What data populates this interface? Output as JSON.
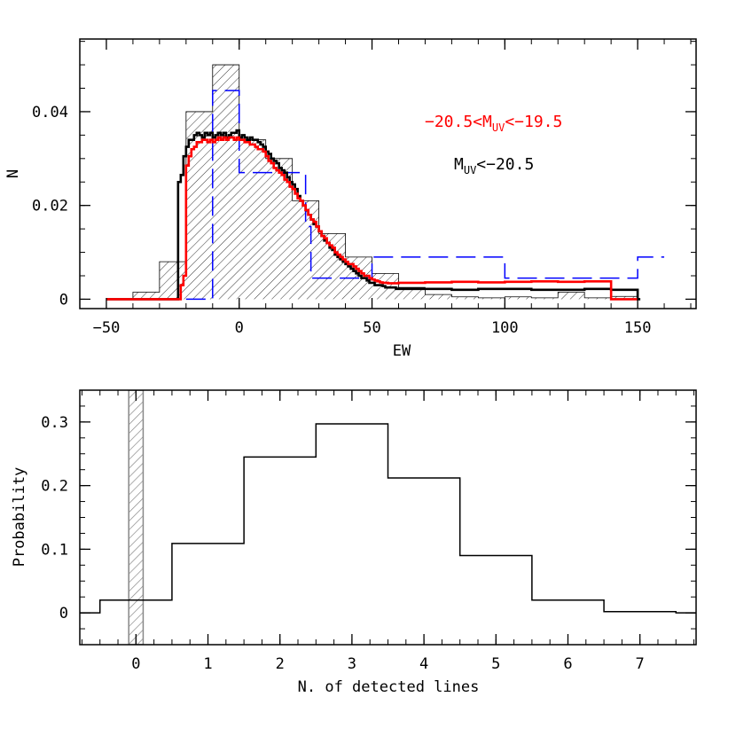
{
  "chart_data": [
    {
      "type": "histogram",
      "xlabel": "EW",
      "ylabel": "N",
      "xlim": [
        -60,
        172
      ],
      "ylim": [
        -0.002,
        0.0555
      ],
      "xticks": [
        -50,
        0,
        50,
        100,
        150
      ],
      "xtick_labels": [
        "−50",
        "0",
        "50",
        "100",
        "150"
      ],
      "yticks": [
        0,
        0.02,
        0.04
      ],
      "ytick_labels": [
        "0",
        "0.02",
        "0.04"
      ],
      "legend": [
        {
          "prefix": "−20.5<M",
          "subscript": "UV",
          "suffix": "<−19.5",
          "color": "#ff0000"
        },
        {
          "prefix": "M",
          "subscript": "UV",
          "suffix": "<−20.5",
          "color": "#000000"
        }
      ],
      "series": [
        {
          "style": "hatched",
          "color": "#000000",
          "edges": [
            -50,
            -40,
            -30,
            -20,
            -10,
            0,
            10,
            20,
            30,
            40,
            50,
            60,
            70,
            80,
            90,
            100,
            110,
            120,
            130,
            140,
            150
          ],
          "values": [
            0,
            0.0015,
            0.008,
            0.04,
            0.05,
            0.034,
            0.03,
            0.021,
            0.014,
            0.009,
            0.0055,
            0.0025,
            0.001,
            0.0005,
            0.0003,
            0.0005,
            0.0003,
            0.0015,
            0.0003,
            0.0006
          ]
        },
        {
          "style": "dashed",
          "color": "#0000ff",
          "edges": [
            -20,
            -10,
            0,
            25,
            27,
            50,
            100,
            150,
            160
          ],
          "values": [
            0,
            0.0445,
            0.027,
            0.0155,
            0.0045,
            0.009,
            0.0045,
            0.009
          ]
        },
        {
          "style": "solid-thick",
          "color": "#000000",
          "x": [
            -50,
            -23,
            -22,
            -21,
            -20,
            -19,
            -18,
            -17,
            -16,
            -15,
            -14,
            -13,
            -12,
            -11,
            -10,
            -9,
            -8,
            -7,
            -6,
            -5,
            -4,
            -3,
            -2,
            -1,
            0,
            1,
            2,
            3,
            4,
            5,
            6,
            7,
            8,
            9,
            10,
            11,
            12,
            13,
            14,
            15,
            16,
            17,
            18,
            19,
            20,
            21,
            22,
            23,
            24,
            25,
            26,
            27,
            28,
            29,
            30,
            31,
            32,
            33,
            34,
            35,
            36,
            37,
            38,
            39,
            40,
            41,
            42,
            43,
            44,
            45,
            46,
            47,
            48,
            49,
            50,
            51,
            52,
            53,
            54,
            55,
            56,
            57,
            58,
            59,
            60,
            70,
            80,
            90,
            100,
            110,
            120,
            130,
            140,
            150
          ],
          "y": [
            0,
            0.025,
            0.0265,
            0.0305,
            0.0325,
            0.034,
            0.034,
            0.035,
            0.0355,
            0.035,
            0.0345,
            0.0355,
            0.035,
            0.0355,
            0.0345,
            0.035,
            0.0355,
            0.035,
            0.0355,
            0.0345,
            0.035,
            0.0355,
            0.0355,
            0.036,
            0.0345,
            0.035,
            0.0345,
            0.034,
            0.0345,
            0.034,
            0.034,
            0.0335,
            0.033,
            0.0325,
            0.0315,
            0.031,
            0.03,
            0.0295,
            0.029,
            0.028,
            0.0275,
            0.027,
            0.026,
            0.025,
            0.0245,
            0.0235,
            0.022,
            0.021,
            0.02,
            0.019,
            0.018,
            0.017,
            0.016,
            0.0155,
            0.0145,
            0.0135,
            0.0125,
            0.012,
            0.011,
            0.0105,
            0.0095,
            0.009,
            0.0085,
            0.008,
            0.0075,
            0.007,
            0.0065,
            0.006,
            0.0055,
            0.005,
            0.0045,
            0.0045,
            0.004,
            0.0035,
            0.0035,
            0.003,
            0.003,
            0.003,
            0.0028,
            0.0025,
            0.0025,
            0.0025,
            0.0025,
            0.0022,
            0.0022,
            0.0022,
            0.002,
            0.0022,
            0.0022,
            0.002,
            0.002,
            0.0022,
            0.002,
            0
          ]
        },
        {
          "style": "solid-thick",
          "color": "#ff0000",
          "x": [
            -50,
            -22,
            -21,
            -20,
            -19,
            -18,
            -17,
            -16,
            -15,
            -14,
            -13,
            -12,
            -11,
            -10,
            -9,
            -8,
            -7,
            -6,
            -5,
            -4,
            -3,
            -2,
            -1,
            0,
            1,
            2,
            3,
            4,
            5,
            6,
            7,
            8,
            9,
            10,
            11,
            12,
            13,
            14,
            15,
            16,
            17,
            18,
            19,
            20,
            21,
            22,
            23,
            24,
            25,
            26,
            27,
            28,
            29,
            30,
            31,
            32,
            33,
            34,
            35,
            36,
            37,
            38,
            39,
            40,
            41,
            42,
            43,
            44,
            45,
            46,
            47,
            48,
            49,
            50,
            51,
            52,
            53,
            54,
            55,
            56,
            57,
            58,
            59,
            60,
            70,
            80,
            90,
            100,
            110,
            120,
            130,
            140,
            150
          ],
          "y": [
            0,
            0.003,
            0.005,
            0.0285,
            0.0305,
            0.032,
            0.0325,
            0.0335,
            0.0335,
            0.034,
            0.034,
            0.0335,
            0.034,
            0.0335,
            0.034,
            0.0345,
            0.034,
            0.0345,
            0.034,
            0.0345,
            0.0345,
            0.034,
            0.0345,
            0.034,
            0.034,
            0.0335,
            0.0335,
            0.033,
            0.033,
            0.0325,
            0.032,
            0.032,
            0.0315,
            0.0305,
            0.0295,
            0.029,
            0.028,
            0.0275,
            0.027,
            0.0265,
            0.0255,
            0.025,
            0.024,
            0.0235,
            0.0225,
            0.0215,
            0.021,
            0.02,
            0.019,
            0.018,
            0.017,
            0.0165,
            0.0155,
            0.0145,
            0.0135,
            0.013,
            0.012,
            0.0115,
            0.011,
            0.01,
            0.0095,
            0.009,
            0.0085,
            0.008,
            0.0075,
            0.0075,
            0.007,
            0.0065,
            0.006,
            0.0055,
            0.005,
            0.005,
            0.0045,
            0.0042,
            0.004,
            0.0038,
            0.0036,
            0.0035,
            0.0035,
            0.0034,
            0.0034,
            0.0034,
            0.0034,
            0.0035,
            0.0036,
            0.0037,
            0.0036,
            0.0037,
            0.0038,
            0.0037,
            0.0038,
            0
          ]
        }
      ]
    },
    {
      "type": "histogram",
      "xlabel": "N. of detected lines",
      "ylabel": "Probability",
      "xlim": [
        -0.78,
        7.78
      ],
      "ylim": [
        -0.05,
        0.35
      ],
      "xticks": [
        0,
        1,
        2,
        3,
        4,
        5,
        6,
        7
      ],
      "xtick_labels": [
        "0",
        "1",
        "2",
        "3",
        "4",
        "5",
        "6",
        "7"
      ],
      "yticks": [
        0,
        0.1,
        0.2,
        0.3
      ],
      "ytick_labels": [
        "0",
        "0.1",
        "0.2",
        "0.3"
      ],
      "series": [
        {
          "style": "step",
          "color": "#000000",
          "edges": [
            -0.78,
            -0.5,
            0.5,
            1.5,
            2.5,
            3.5,
            4.5,
            5.5,
            6.5,
            7.5,
            7.78
          ],
          "values": [
            0,
            0.02,
            0.109,
            0.245,
            0.297,
            0.212,
            0.09,
            0.02,
            0.002,
            0
          ]
        },
        {
          "style": "hatched-band",
          "color": "#aaaaaa",
          "x": [
            -0.1,
            0.1
          ]
        }
      ]
    }
  ]
}
